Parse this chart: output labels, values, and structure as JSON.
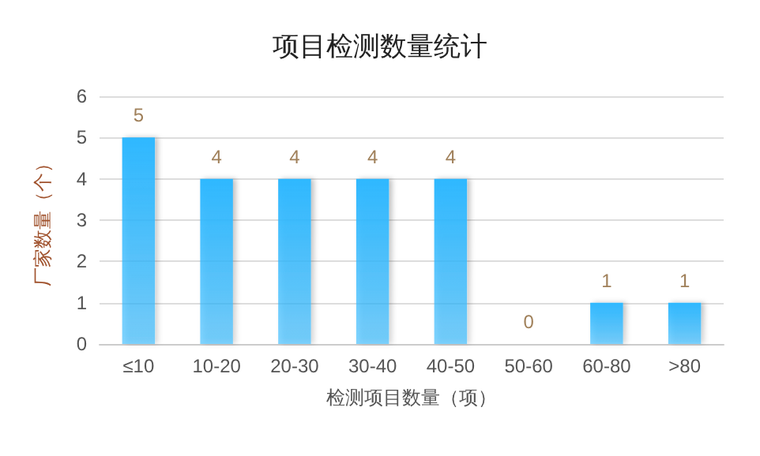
{
  "chart_data": {
    "type": "bar",
    "title": "项目检测数量统计",
    "xlabel": "检测项目数量（项）",
    "ylabel": "厂家数量（个）",
    "categories": [
      "≤10",
      "10-20",
      "20-30",
      "30-40",
      "40-50",
      "50-60",
      "60-80",
      ">80"
    ],
    "values": [
      5,
      4,
      4,
      4,
      4,
      0,
      1,
      1
    ],
    "color": "#2fb8ff",
    "ylim": [
      0,
      6
    ],
    "yticks": [
      0,
      1,
      2,
      3,
      4,
      5,
      6
    ],
    "grid": "y",
    "data_labels": true
  }
}
